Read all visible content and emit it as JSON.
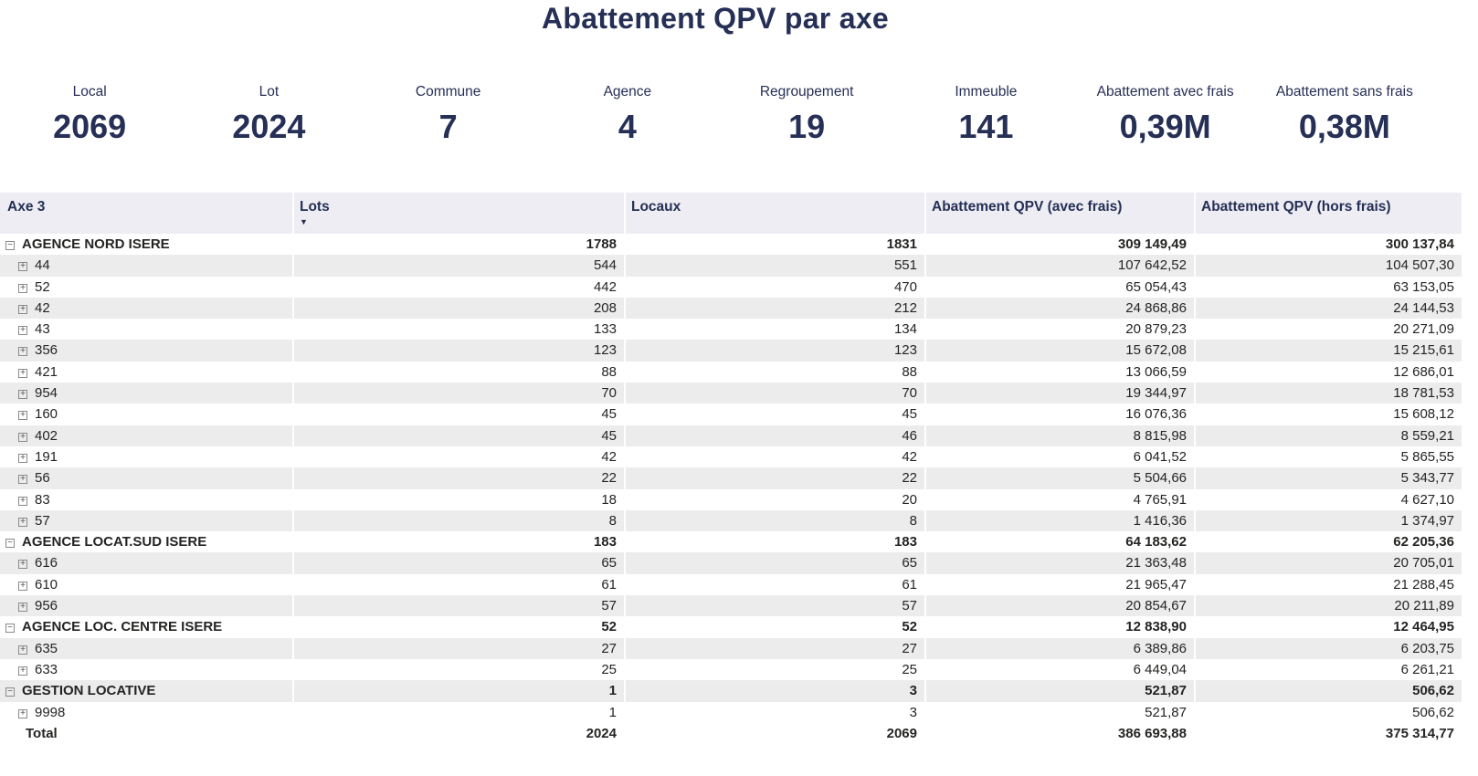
{
  "title": "Abattement QPV par axe",
  "accent_color": "#262f55",
  "stripe_color": "#ececec",
  "header_bg_color": "#ededf3",
  "kpis": [
    {
      "label": "Local",
      "value": "2069"
    },
    {
      "label": "Lot",
      "value": "2024"
    },
    {
      "label": "Commune",
      "value": "7"
    },
    {
      "label": "Agence",
      "value": "4"
    },
    {
      "label": "Regroupement",
      "value": "19"
    },
    {
      "label": "Immeuble",
      "value": "141"
    },
    {
      "label": "Abattement avec frais",
      "value": "0,39M"
    },
    {
      "label": "Abattement sans frais",
      "value": "0,38M"
    }
  ],
  "table": {
    "icons": {
      "collapse": "−",
      "expand": "+",
      "sort_desc": "▼"
    },
    "columns": [
      {
        "key": "axe3",
        "label": "Axe 3",
        "sorted": null
      },
      {
        "key": "lots",
        "label": "Lots",
        "sorted": "desc"
      },
      {
        "key": "locaux",
        "label": "Locaux",
        "sorted": null
      },
      {
        "key": "abattement-avec-frais",
        "label": "Abattement QPV (avec frais)",
        "sorted": null
      },
      {
        "key": "abattement-hors-frais",
        "label": "Abattement QPV (hors frais)",
        "sorted": null
      }
    ],
    "rows": [
      {
        "label": "AGENCE NORD ISERE",
        "type": "group",
        "values": [
          "1788",
          "1831",
          "309 149,49",
          "300 137,84"
        ]
      },
      {
        "label": "44",
        "type": "child",
        "values": [
          "544",
          "551",
          "107 642,52",
          "104 507,30"
        ]
      },
      {
        "label": "52",
        "type": "child",
        "values": [
          "442",
          "470",
          "65 054,43",
          "63 153,05"
        ]
      },
      {
        "label": "42",
        "type": "child",
        "values": [
          "208",
          "212",
          "24 868,86",
          "24 144,53"
        ]
      },
      {
        "label": "43",
        "type": "child",
        "values": [
          "133",
          "134",
          "20 879,23",
          "20 271,09"
        ]
      },
      {
        "label": "356",
        "type": "child",
        "values": [
          "123",
          "123",
          "15 672,08",
          "15 215,61"
        ]
      },
      {
        "label": "421",
        "type": "child",
        "values": [
          "88",
          "88",
          "13 066,59",
          "12 686,01"
        ]
      },
      {
        "label": "954",
        "type": "child",
        "values": [
          "70",
          "70",
          "19 344,97",
          "18 781,53"
        ]
      },
      {
        "label": "160",
        "type": "child",
        "values": [
          "45",
          "45",
          "16 076,36",
          "15 608,12"
        ]
      },
      {
        "label": "402",
        "type": "child",
        "values": [
          "45",
          "46",
          "8 815,98",
          "8 559,21"
        ]
      },
      {
        "label": "191",
        "type": "child",
        "values": [
          "42",
          "42",
          "6 041,52",
          "5 865,55"
        ]
      },
      {
        "label": "56",
        "type": "child",
        "values": [
          "22",
          "22",
          "5 504,66",
          "5 343,77"
        ]
      },
      {
        "label": "83",
        "type": "child",
        "values": [
          "18",
          "20",
          "4 765,91",
          "4 627,10"
        ]
      },
      {
        "label": "57",
        "type": "child",
        "values": [
          "8",
          "8",
          "1 416,36",
          "1 374,97"
        ]
      },
      {
        "label": "AGENCE LOCAT.SUD ISERE",
        "type": "group",
        "values": [
          "183",
          "183",
          "64 183,62",
          "62 205,36"
        ]
      },
      {
        "label": "616",
        "type": "child",
        "values": [
          "65",
          "65",
          "21 363,48",
          "20 705,01"
        ]
      },
      {
        "label": "610",
        "type": "child",
        "values": [
          "61",
          "61",
          "21 965,47",
          "21 288,45"
        ]
      },
      {
        "label": "956",
        "type": "child",
        "values": [
          "57",
          "57",
          "20 854,67",
          "20 211,89"
        ]
      },
      {
        "label": "AGENCE LOC. CENTRE ISERE",
        "type": "group",
        "values": [
          "52",
          "52",
          "12 838,90",
          "12 464,95"
        ]
      },
      {
        "label": "635",
        "type": "child",
        "values": [
          "27",
          "27",
          "6 389,86",
          "6 203,75"
        ]
      },
      {
        "label": "633",
        "type": "child",
        "values": [
          "25",
          "25",
          "6 449,04",
          "6 261,21"
        ]
      },
      {
        "label": "GESTION LOCATIVE",
        "type": "group",
        "values": [
          "1",
          "3",
          "521,87",
          "506,62"
        ]
      },
      {
        "label": "9998",
        "type": "child",
        "values": [
          "1",
          "3",
          "521,87",
          "506,62"
        ]
      },
      {
        "label": "Total",
        "type": "total",
        "values": [
          "2024",
          "2069",
          "386 693,88",
          "375 314,77"
        ]
      }
    ]
  }
}
